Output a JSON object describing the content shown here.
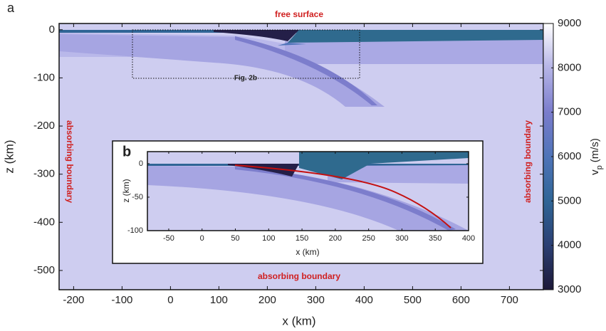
{
  "chart_data": [
    {
      "type": "heatmap",
      "panel_label": "a",
      "x_label": "x (km)",
      "y_label": "z (km)",
      "xlim": [
        -230,
        770
      ],
      "ylim": [
        -540,
        13
      ],
      "xticks": [
        -200,
        -100,
        0,
        100,
        200,
        300,
        400,
        500,
        600,
        700
      ],
      "yticks": [
        0,
        -100,
        -200,
        -300,
        -400,
        -500
      ],
      "annotations": [
        "free surface",
        "absorbing boundary",
        "absorbing boundary",
        "absorbing boundary",
        "Fig. 2b"
      ],
      "colorbar": {
        "lim": [
          3000,
          9000
        ],
        "ticks": [
          3000,
          4000,
          5000,
          6000,
          7000,
          8000,
          9000
        ],
        "label_symbol": "v",
        "label_subscript": "p",
        "label_unit": "(m/s)",
        "colormap": [
          "#1c1838",
          "#2b3f73",
          "#2f6596",
          "#4f74b8",
          "#7a7ccc",
          "#b5b4e6",
          "#ffffff"
        ]
      }
    },
    {
      "type": "heatmap",
      "panel_label": "b",
      "x_label": "x (km)",
      "y_label": "z (km)",
      "xlim": [
        -82,
        400
      ],
      "ylim": [
        -100,
        18
      ],
      "xticks": [
        -50,
        0,
        50,
        100,
        150,
        200,
        250,
        300,
        350,
        400
      ],
      "yticks": [
        0,
        -50,
        -100
      ]
    }
  ]
}
